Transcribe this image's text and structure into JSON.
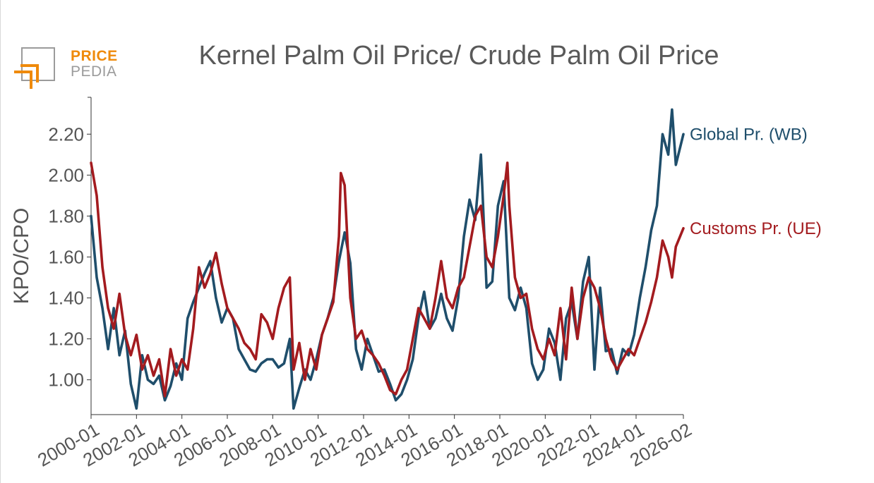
{
  "logo": {
    "word_top": "PRICE",
    "word_bottom": "PEDIA",
    "orange": "#ef8a0b",
    "gray": "#9b9b9b"
  },
  "chart_data": {
    "type": "line",
    "title": "Kernel Palm Oil Price/ Crude Palm Oil Price",
    "xlabel": "",
    "ylabel": "KPO/CPO",
    "xlim": [
      "2000-01",
      "2026-02"
    ],
    "ylim": [
      0.83,
      2.38
    ],
    "x_ticks": [
      "2000-01",
      "2002-01",
      "2004-01",
      "2006-01",
      "2008-01",
      "2010-01",
      "2012-01",
      "2014-01",
      "2016-01",
      "2018-01",
      "2020-01",
      "2022-01",
      "2024-01",
      "2026-02"
    ],
    "y_ticks": [
      "1.00",
      "1.20",
      "1.40",
      "1.60",
      "1.80",
      "2.00",
      "2.20"
    ],
    "grid": false,
    "legend": "series labels at the right end of each line",
    "series": [
      {
        "name": "Global Pr. (WB)",
        "color": "#1f4e6b",
        "points": [
          [
            "2000-01",
            1.8
          ],
          [
            "2000-04",
            1.5
          ],
          [
            "2000-07",
            1.35
          ],
          [
            "2000-10",
            1.15
          ],
          [
            "2001-01",
            1.35
          ],
          [
            "2001-04",
            1.12
          ],
          [
            "2001-07",
            1.24
          ],
          [
            "2001-10",
            0.98
          ],
          [
            "2002-01",
            0.86
          ],
          [
            "2002-04",
            1.12
          ],
          [
            "2002-07",
            1.0
          ],
          [
            "2002-10",
            0.98
          ],
          [
            "2003-01",
            1.02
          ],
          [
            "2003-04",
            0.9
          ],
          [
            "2003-07",
            0.97
          ],
          [
            "2003-10",
            1.08
          ],
          [
            "2004-01",
            1.0
          ],
          [
            "2004-04",
            1.3
          ],
          [
            "2004-07",
            1.38
          ],
          [
            "2004-10",
            1.45
          ],
          [
            "2005-01",
            1.52
          ],
          [
            "2005-04",
            1.58
          ],
          [
            "2005-07",
            1.4
          ],
          [
            "2005-10",
            1.28
          ],
          [
            "2006-01",
            1.35
          ],
          [
            "2006-04",
            1.3
          ],
          [
            "2006-07",
            1.15
          ],
          [
            "2006-10",
            1.1
          ],
          [
            "2007-01",
            1.05
          ],
          [
            "2007-04",
            1.04
          ],
          [
            "2007-07",
            1.08
          ],
          [
            "2007-10",
            1.1
          ],
          [
            "2008-01",
            1.1
          ],
          [
            "2008-04",
            1.06
          ],
          [
            "2008-07",
            1.08
          ],
          [
            "2008-10",
            1.2
          ],
          [
            "2008-12",
            0.86
          ],
          [
            "2009-03",
            0.96
          ],
          [
            "2009-06",
            1.05
          ],
          [
            "2009-09",
            1.0
          ],
          [
            "2009-12",
            1.1
          ],
          [
            "2010-03",
            1.22
          ],
          [
            "2010-06",
            1.3
          ],
          [
            "2010-09",
            1.4
          ],
          [
            "2010-12",
            1.58
          ],
          [
            "2011-03",
            1.72
          ],
          [
            "2011-06",
            1.57
          ],
          [
            "2011-09",
            1.15
          ],
          [
            "2011-12",
            1.05
          ],
          [
            "2012-03",
            1.2
          ],
          [
            "2012-06",
            1.12
          ],
          [
            "2012-09",
            1.04
          ],
          [
            "2012-12",
            1.05
          ],
          [
            "2013-03",
            0.98
          ],
          [
            "2013-06",
            0.9
          ],
          [
            "2013-09",
            0.93
          ],
          [
            "2013-12",
            1.0
          ],
          [
            "2014-03",
            1.1
          ],
          [
            "2014-06",
            1.3
          ],
          [
            "2014-09",
            1.43
          ],
          [
            "2014-12",
            1.25
          ],
          [
            "2015-03",
            1.3
          ],
          [
            "2015-06",
            1.42
          ],
          [
            "2015-09",
            1.3
          ],
          [
            "2015-12",
            1.24
          ],
          [
            "2016-03",
            1.4
          ],
          [
            "2016-06",
            1.7
          ],
          [
            "2016-09",
            1.88
          ],
          [
            "2016-12",
            1.78
          ],
          [
            "2017-03",
            2.1
          ],
          [
            "2017-06",
            1.45
          ],
          [
            "2017-09",
            1.48
          ],
          [
            "2017-12",
            1.85
          ],
          [
            "2018-03",
            1.97
          ],
          [
            "2018-06",
            1.4
          ],
          [
            "2018-09",
            1.34
          ],
          [
            "2018-12",
            1.45
          ],
          [
            "2019-03",
            1.35
          ],
          [
            "2019-06",
            1.08
          ],
          [
            "2019-09",
            1.0
          ],
          [
            "2019-12",
            1.05
          ],
          [
            "2020-03",
            1.25
          ],
          [
            "2020-06",
            1.18
          ],
          [
            "2020-09",
            1.0
          ],
          [
            "2020-12",
            1.3
          ],
          [
            "2021-03",
            1.38
          ],
          [
            "2021-06",
            1.2
          ],
          [
            "2021-09",
            1.48
          ],
          [
            "2021-12",
            1.6
          ],
          [
            "2022-03",
            1.05
          ],
          [
            "2022-06",
            1.45
          ],
          [
            "2022-09",
            1.14
          ],
          [
            "2022-12",
            1.15
          ],
          [
            "2023-03",
            1.03
          ],
          [
            "2023-06",
            1.15
          ],
          [
            "2023-09",
            1.12
          ],
          [
            "2023-12",
            1.22
          ],
          [
            "2024-03",
            1.4
          ],
          [
            "2024-06",
            1.55
          ],
          [
            "2024-09",
            1.73
          ],
          [
            "2024-12",
            1.85
          ],
          [
            "2025-03",
            2.2
          ],
          [
            "2025-06",
            2.1
          ],
          [
            "2025-08",
            2.32
          ],
          [
            "2025-10",
            2.05
          ],
          [
            "2026-02",
            2.2
          ]
        ]
      },
      {
        "name": "Customs Pr. (UE)",
        "color": "#a31b1f",
        "points": [
          [
            "2000-01",
            2.06
          ],
          [
            "2000-04",
            1.9
          ],
          [
            "2000-07",
            1.55
          ],
          [
            "2000-10",
            1.35
          ],
          [
            "2001-01",
            1.25
          ],
          [
            "2001-04",
            1.42
          ],
          [
            "2001-07",
            1.22
          ],
          [
            "2001-10",
            1.12
          ],
          [
            "2002-01",
            1.22
          ],
          [
            "2002-04",
            1.05
          ],
          [
            "2002-07",
            1.12
          ],
          [
            "2002-10",
            1.02
          ],
          [
            "2003-01",
            1.1
          ],
          [
            "2003-04",
            0.92
          ],
          [
            "2003-07",
            1.15
          ],
          [
            "2003-10",
            1.02
          ],
          [
            "2004-01",
            1.1
          ],
          [
            "2004-04",
            1.05
          ],
          [
            "2004-07",
            1.25
          ],
          [
            "2004-10",
            1.55
          ],
          [
            "2005-01",
            1.45
          ],
          [
            "2005-04",
            1.52
          ],
          [
            "2005-07",
            1.62
          ],
          [
            "2005-10",
            1.47
          ],
          [
            "2006-01",
            1.35
          ],
          [
            "2006-04",
            1.3
          ],
          [
            "2006-07",
            1.25
          ],
          [
            "2006-10",
            1.18
          ],
          [
            "2007-01",
            1.15
          ],
          [
            "2007-04",
            1.1
          ],
          [
            "2007-07",
            1.32
          ],
          [
            "2007-10",
            1.28
          ],
          [
            "2008-01",
            1.2
          ],
          [
            "2008-04",
            1.35
          ],
          [
            "2008-07",
            1.45
          ],
          [
            "2008-10",
            1.5
          ],
          [
            "2008-12",
            1.05
          ],
          [
            "2009-03",
            1.18
          ],
          [
            "2009-06",
            1.0
          ],
          [
            "2009-09",
            1.15
          ],
          [
            "2009-12",
            1.05
          ],
          [
            "2010-03",
            1.22
          ],
          [
            "2010-06",
            1.3
          ],
          [
            "2010-09",
            1.38
          ],
          [
            "2010-12",
            1.7
          ],
          [
            "2011-01",
            2.01
          ],
          [
            "2011-03",
            1.95
          ],
          [
            "2011-06",
            1.4
          ],
          [
            "2011-09",
            1.2
          ],
          [
            "2011-12",
            1.24
          ],
          [
            "2012-03",
            1.15
          ],
          [
            "2012-06",
            1.12
          ],
          [
            "2012-09",
            1.08
          ],
          [
            "2012-12",
            1.02
          ],
          [
            "2013-03",
            0.95
          ],
          [
            "2013-06",
            0.93
          ],
          [
            "2013-09",
            1.0
          ],
          [
            "2013-12",
            1.05
          ],
          [
            "2014-03",
            1.2
          ],
          [
            "2014-06",
            1.35
          ],
          [
            "2014-09",
            1.3
          ],
          [
            "2014-12",
            1.25
          ],
          [
            "2015-03",
            1.4
          ],
          [
            "2015-06",
            1.58
          ],
          [
            "2015-09",
            1.4
          ],
          [
            "2015-12",
            1.35
          ],
          [
            "2016-03",
            1.45
          ],
          [
            "2016-06",
            1.5
          ],
          [
            "2016-09",
            1.65
          ],
          [
            "2016-12",
            1.8
          ],
          [
            "2017-03",
            1.85
          ],
          [
            "2017-06",
            1.6
          ],
          [
            "2017-09",
            1.55
          ],
          [
            "2017-12",
            1.7
          ],
          [
            "2018-03",
            1.9
          ],
          [
            "2018-05",
            2.06
          ],
          [
            "2018-06",
            1.85
          ],
          [
            "2018-09",
            1.5
          ],
          [
            "2018-12",
            1.4
          ],
          [
            "2019-03",
            1.42
          ],
          [
            "2019-06",
            1.25
          ],
          [
            "2019-09",
            1.15
          ],
          [
            "2019-12",
            1.1
          ],
          [
            "2020-03",
            1.2
          ],
          [
            "2020-06",
            1.12
          ],
          [
            "2020-09",
            1.35
          ],
          [
            "2020-12",
            1.1
          ],
          [
            "2021-03",
            1.45
          ],
          [
            "2021-06",
            1.2
          ],
          [
            "2021-09",
            1.4
          ],
          [
            "2021-12",
            1.5
          ],
          [
            "2022-03",
            1.45
          ],
          [
            "2022-06",
            1.35
          ],
          [
            "2022-09",
            1.2
          ],
          [
            "2022-12",
            1.1
          ],
          [
            "2023-03",
            1.05
          ],
          [
            "2023-06",
            1.1
          ],
          [
            "2023-09",
            1.15
          ],
          [
            "2023-12",
            1.12
          ],
          [
            "2024-03",
            1.2
          ],
          [
            "2024-06",
            1.28
          ],
          [
            "2024-09",
            1.38
          ],
          [
            "2024-12",
            1.5
          ],
          [
            "2025-03",
            1.68
          ],
          [
            "2025-06",
            1.6
          ],
          [
            "2025-08",
            1.5
          ],
          [
            "2025-10",
            1.65
          ],
          [
            "2026-02",
            1.74
          ]
        ]
      }
    ]
  }
}
